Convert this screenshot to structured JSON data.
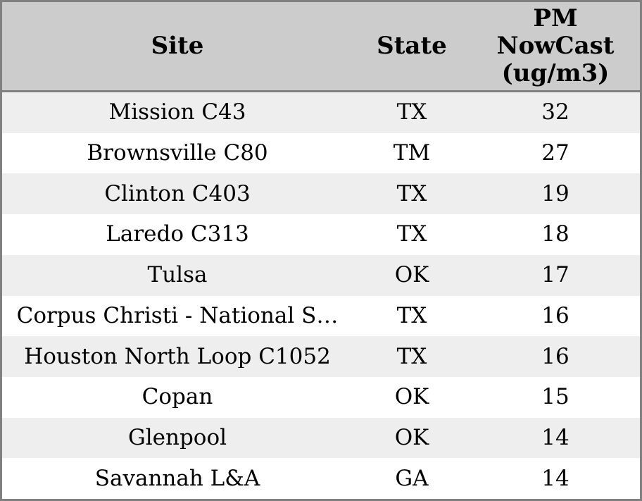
{
  "chart_data": {
    "type": "table",
    "columns": [
      "Site",
      "State",
      "PM NowCast (ug/m3)"
    ],
    "rows": [
      [
        "Mission C43",
        "TX",
        32
      ],
      [
        "Brownsville C80",
        "TM",
        27
      ],
      [
        "Clinton C403",
        "TX",
        19
      ],
      [
        "Laredo C313",
        "TX",
        18
      ],
      [
        "Tulsa",
        "OK",
        17
      ],
      [
        "Corpus Christi - National S…",
        "TX",
        16
      ],
      [
        "Houston North Loop C1052",
        "TX",
        16
      ],
      [
        "Copan",
        "OK",
        15
      ],
      [
        "Glenpool",
        "OK",
        14
      ],
      [
        "Savannah L&A",
        "GA",
        14
      ]
    ]
  },
  "header_display": {
    "site": "Site",
    "state": "State",
    "pm_nowcast": "PM\nNowCast\n(ug/m3)"
  },
  "colors": {
    "border": "#808080",
    "header_bg": "#cccccc",
    "row_alt_bg": "#eeeeee",
    "row_bg": "#ffffff",
    "text": "#000000"
  }
}
